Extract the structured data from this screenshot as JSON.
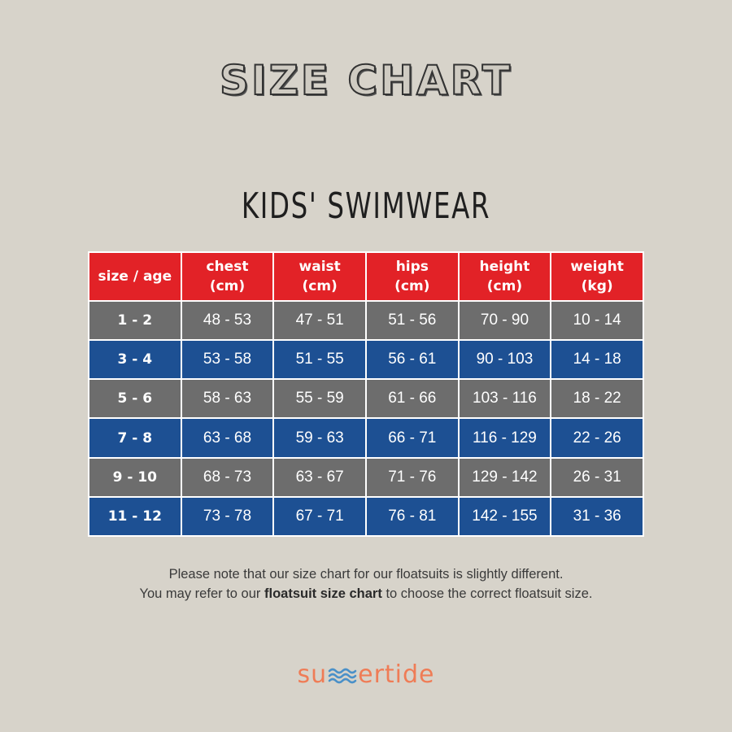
{
  "title": "SIZE CHART",
  "subtitle": "KIDS' SWIMWEAR",
  "table": {
    "headers": [
      {
        "line1": "size / age",
        "line2": ""
      },
      {
        "line1": "chest",
        "line2": "(cm)"
      },
      {
        "line1": "waist",
        "line2": "(cm)"
      },
      {
        "line1": "hips",
        "line2": "(cm)"
      },
      {
        "line1": "height",
        "line2": "(cm)"
      },
      {
        "line1": "weight",
        "line2": "(kg)"
      }
    ],
    "rows": [
      [
        "1 - 2",
        "48 - 53",
        "47 - 51",
        "51 - 56",
        "70 - 90",
        "10 - 14"
      ],
      [
        "3 - 4",
        "53 - 58",
        "51 - 55",
        "56 - 61",
        "90 - 103",
        "14 - 18"
      ],
      [
        "5 - 6",
        "58 - 63",
        "55 - 59",
        "61 - 66",
        "103 - 116",
        "18 - 22"
      ],
      [
        "7 - 8",
        "63 - 68",
        "59 - 63",
        "66 - 71",
        "116 - 129",
        "22 - 26"
      ],
      [
        "9 - 10",
        "68 - 73",
        "63 - 67",
        "71 - 76",
        "129 - 142",
        "26 - 31"
      ],
      [
        "11 - 12",
        "73 - 78",
        "67 - 71",
        "76 - 81",
        "142 - 155",
        "31 - 36"
      ]
    ],
    "colors": {
      "header": "#e22227",
      "row_grey": "#6d6d6d",
      "row_blue": "#1d5093"
    }
  },
  "note": {
    "line1": "Please note that our size chart for our floatsuits is slightly different.",
    "line2_before": "You may refer to our ",
    "line2_link": "floatsuit size chart",
    "line2_after": " to choose the correct floatsuit size."
  },
  "logo": {
    "before": "su",
    "icon": "waves-icon",
    "after": "ertide",
    "color": "#ef7c56"
  }
}
